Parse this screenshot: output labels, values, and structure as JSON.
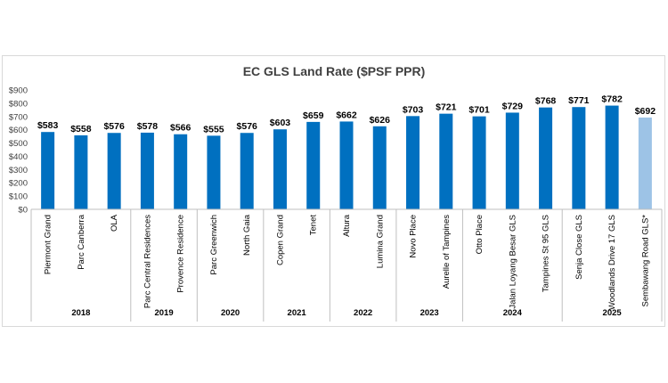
{
  "chart_data": {
    "type": "bar",
    "title": "EC GLS Land Rate ($PSF PPR)",
    "xlabel": "",
    "ylabel": "",
    "ylim": [
      0,
      900
    ],
    "yticks": [
      "$0",
      "$100",
      "$200",
      "$300",
      "$400",
      "$500",
      "$600",
      "$700",
      "$800",
      "$900"
    ],
    "grid": false,
    "legend": "none",
    "colors": {
      "primary": "#0070C0",
      "highlight": "#9DC3E6",
      "axis": "#bfbfbf",
      "title": "#404040"
    },
    "categories": [
      "Piermont Grand",
      "Parc Canberra",
      "OLA",
      "Parc Central Residences",
      "Provence Residence",
      "Parc Greenwich",
      "North Gaia",
      "Copen Grand",
      "Tenet",
      "Altura",
      "Lumina Grand",
      "Novo Place",
      "Aurelle of Tampines",
      "Otto Place",
      "Jalan Loyang Besar GLS",
      "Tampines St 95 GLS",
      "Senja Close GLS",
      "Woodlands Drive 17 GLS",
      "Sembawang Road GLS*"
    ],
    "values": [
      583,
      558,
      576,
      578,
      566,
      555,
      576,
      603,
      659,
      662,
      626,
      703,
      721,
      701,
      729,
      768,
      771,
      782,
      692
    ],
    "value_labels": [
      "$583",
      "$558",
      "$576",
      "$578",
      "$566",
      "$555",
      "$576",
      "$603",
      "$659",
      "$662",
      "$626",
      "$703",
      "$721",
      "$701",
      "$729",
      "$768",
      "$771",
      "$782",
      "$692"
    ],
    "highlighted_index": 18,
    "groups": [
      {
        "label": "2018",
        "count": 3
      },
      {
        "label": "2019",
        "count": 2
      },
      {
        "label": "2020",
        "count": 2
      },
      {
        "label": "2021",
        "count": 2
      },
      {
        "label": "2022",
        "count": 2
      },
      {
        "label": "2023",
        "count": 2
      },
      {
        "label": "2024",
        "count": 3
      },
      {
        "label": "2025",
        "count": 3
      }
    ]
  }
}
